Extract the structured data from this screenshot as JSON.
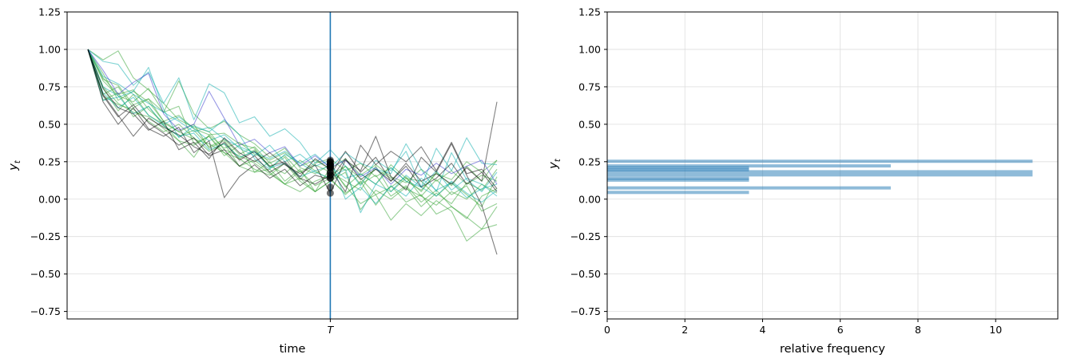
{
  "chart_data": [
    {
      "type": "line",
      "xlabel": "time",
      "ylabel": "y",
      "ylabel_sub": "t",
      "xtick_label": "T",
      "ylim": [
        -0.8,
        1.25
      ],
      "yticks": [
        1.25,
        1.0,
        0.75,
        0.5,
        0.25,
        0.0,
        -0.25,
        -0.5,
        -0.75
      ],
      "ytick_labels": [
        "1.25",
        "1.00",
        "0.75",
        "0.50",
        "0.25",
        "0.00",
        "−0.25",
        "−0.50",
        "−0.75"
      ],
      "n_steps": 28,
      "T_index": 16,
      "vline_color": "#1f77b4",
      "grid": "horizontal",
      "series": [
        {
          "color": "#2ca02c",
          "values": [
            1.0,
            0.74,
            0.59,
            0.7,
            0.56,
            0.5,
            0.39,
            0.28,
            0.43,
            0.44,
            0.37,
            0.34,
            0.21,
            0.28,
            0.13,
            0.23,
            0.18,
            0.12,
            0.06,
            0.22,
            0.05,
            0.14,
            0.12,
            0.02,
            0.11,
            0.03,
            -0.05,
            0.15
          ]
        },
        {
          "color": "#2ca02c",
          "values": [
            1.0,
            0.69,
            0.63,
            0.6,
            0.52,
            0.45,
            0.5,
            0.41,
            0.32,
            0.37,
            0.22,
            0.18,
            0.2,
            0.1,
            0.19,
            0.09,
            0.14,
            0.03,
            0.12,
            -0.04,
            0.09,
            -0.02,
            0.03,
            -0.1,
            -0.05,
            -0.12,
            -0.2,
            -0.17
          ]
        },
        {
          "color": "#2ca02c",
          "values": [
            1.0,
            0.8,
            0.76,
            0.63,
            0.67,
            0.52,
            0.56,
            0.47,
            0.43,
            0.34,
            0.38,
            0.3,
            0.26,
            0.31,
            0.22,
            0.26,
            0.2,
            0.27,
            0.16,
            0.23,
            0.15,
            0.11,
            0.2,
            0.12,
            0.19,
            0.1,
            0.16,
            0.12
          ]
        },
        {
          "color": "#2ca02c",
          "values": [
            1.0,
            0.66,
            0.71,
            0.55,
            0.62,
            0.49,
            0.42,
            0.46,
            0.35,
            0.4,
            0.3,
            0.35,
            0.24,
            0.29,
            0.18,
            0.24,
            0.27,
            0.19,
            0.24,
            0.15,
            0.21,
            0.12,
            0.06,
            0.17,
            0.13,
            0.25,
            0.18,
            0.26
          ]
        },
        {
          "color": "#2ca02c",
          "values": [
            1.0,
            0.93,
            0.99,
            0.81,
            0.73,
            0.64,
            0.53,
            0.48,
            0.45,
            0.33,
            0.29,
            0.24,
            0.17,
            0.1,
            0.14,
            0.05,
            0.21,
            0.09,
            -0.03,
            0.03,
            -0.14,
            -0.03,
            -0.11,
            -0.01,
            -0.08,
            -0.28,
            -0.2,
            -0.05
          ]
        },
        {
          "color": "#2ca02c",
          "values": [
            1.0,
            0.79,
            0.69,
            0.65,
            0.74,
            0.58,
            0.62,
            0.37,
            0.42,
            0.29,
            0.36,
            0.18,
            0.25,
            0.12,
            0.2,
            0.05,
            0.12,
            0.18,
            -0.07,
            0.06,
            0.0,
            0.08,
            -0.05,
            0.04,
            -0.03,
            0.11,
            0.06,
            0.2
          ]
        },
        {
          "color": "#2ca02c",
          "values": [
            1.0,
            0.7,
            0.75,
            0.61,
            0.67,
            0.58,
            0.79,
            0.57,
            0.47,
            0.52,
            0.43,
            0.37,
            0.28,
            0.34,
            0.21,
            0.17,
            0.23,
            0.08,
            0.17,
            0.1,
            0.23,
            0.14,
            0.05,
            0.18,
            0.09,
            0.22,
            0.12,
            0.26
          ]
        },
        {
          "color": "#2ca02c",
          "values": [
            1.0,
            0.84,
            0.66,
            0.72,
            0.65,
            0.52,
            0.45,
            0.5,
            0.34,
            0.39,
            0.27,
            0.2,
            0.16,
            0.24,
            0.12,
            0.05,
            0.12,
            0.22,
            0.1,
            0.16,
            0.02,
            0.09,
            -0.02,
            0.06,
            -0.05,
            -0.13,
            0.02,
            0.07
          ]
        },
        {
          "color": "#2ca02c",
          "values": [
            1.0,
            0.75,
            0.64,
            0.58,
            0.55,
            0.47,
            0.39,
            0.36,
            0.42,
            0.31,
            0.27,
            0.33,
            0.22,
            0.17,
            0.26,
            0.19,
            0.13,
            0.04,
            0.11,
            0.2,
            0.14,
            0.07,
            0.02,
            0.13,
            0.03,
            0.09,
            -0.08,
            -0.03
          ]
        },
        {
          "color": "#2ca02c",
          "values": [
            1.0,
            0.81,
            0.7,
            0.73,
            0.6,
            0.51,
            0.45,
            0.4,
            0.37,
            0.31,
            0.22,
            0.26,
            0.18,
            0.1,
            0.05,
            0.12,
            0.16,
            0.22,
            0.14,
            0.03,
            0.08,
            0.15,
            0.02,
            -0.04,
            0.05,
            0.0,
            0.1,
            0.04
          ]
        },
        {
          "color": "#00aaaa",
          "values": [
            1.0,
            0.92,
            0.9,
            0.76,
            0.85,
            0.64,
            0.81,
            0.53,
            0.77,
            0.71,
            0.51,
            0.55,
            0.42,
            0.47,
            0.38,
            0.24,
            0.33,
            0.22,
            0.09,
            0.26,
            0.19,
            0.32,
            0.08,
            0.34,
            0.19,
            0.41,
            0.24,
            0.23
          ]
        },
        {
          "color": "#00aaaa",
          "values": [
            1.0,
            0.66,
            0.68,
            0.72,
            0.88,
            0.6,
            0.41,
            0.49,
            0.45,
            0.53,
            0.43,
            0.27,
            0.2,
            0.3,
            0.24,
            0.3,
            0.21,
            0.31,
            0.24,
            0.2,
            0.17,
            0.37,
            0.2,
            0.05,
            0.31,
            0.13,
            0.05,
            0.18
          ]
        },
        {
          "color": "#00aaaa",
          "values": [
            1.0,
            0.71,
            0.61,
            0.68,
            0.56,
            0.49,
            0.42,
            0.44,
            0.33,
            0.37,
            0.28,
            0.32,
            0.21,
            0.24,
            0.15,
            0.19,
            0.22,
            0.14,
            0.17,
            0.1,
            0.21,
            0.12,
            0.08,
            0.19,
            0.06,
            0.14,
            0.1,
            0.02
          ]
        },
        {
          "color": "#00aaaa",
          "values": [
            1.0,
            0.75,
            0.69,
            0.57,
            0.62,
            0.5,
            0.55,
            0.47,
            0.39,
            0.43,
            0.34,
            0.29,
            0.36,
            0.25,
            0.3,
            0.22,
            0.26,
            0.0,
            0.08,
            -0.03,
            0.09,
            0.02,
            0.14,
            0.06,
            0.11,
            0.01,
            0.07,
            0.1
          ]
        },
        {
          "color": "#00aaaa",
          "values": [
            1.0,
            0.82,
            0.77,
            0.7,
            0.64,
            0.58,
            0.52,
            0.45,
            0.48,
            0.4,
            0.35,
            0.31,
            0.27,
            0.32,
            0.24,
            0.18,
            0.14,
            0.2,
            -0.09,
            0.1,
            0.05,
            0.16,
            0.08,
            0.02,
            0.12,
            0.04,
            -0.02,
            0.06
          ]
        },
        {
          "color": "#3333cc",
          "values": [
            1.0,
            0.86,
            0.7,
            0.78,
            0.84,
            0.57,
            0.46,
            0.5,
            0.72,
            0.54,
            0.36,
            0.4,
            0.31,
            0.35,
            0.22,
            0.29,
            0.21,
            0.26,
            0.15,
            0.21,
            0.1,
            0.2,
            0.16,
            0.24,
            0.17,
            0.22,
            0.26,
            0.1
          ]
        },
        {
          "color": "#000000",
          "values": [
            1.0,
            0.65,
            0.5,
            0.61,
            0.47,
            0.42,
            0.48,
            0.31,
            0.39,
            0.01,
            0.15,
            0.23,
            0.14,
            0.2,
            0.09,
            0.16,
            0.13,
            0.27,
            0.13,
            0.2,
            0.12,
            0.24,
            0.12,
            0.17,
            0.1,
            0.21,
            0.12,
            0.65
          ]
        },
        {
          "color": "#000000",
          "values": [
            1.0,
            0.7,
            0.56,
            0.42,
            0.54,
            0.48,
            0.43,
            0.35,
            0.3,
            0.38,
            0.26,
            0.32,
            0.22,
            0.25,
            0.15,
            0.27,
            0.2,
            0.05,
            0.36,
            0.23,
            0.32,
            0.25,
            0.35,
            0.19,
            0.38,
            0.17,
            0.2,
            0.07
          ]
        },
        {
          "color": "#000000",
          "values": [
            1.0,
            0.74,
            0.61,
            0.57,
            0.46,
            0.52,
            0.33,
            0.38,
            0.27,
            0.41,
            0.31,
            0.25,
            0.31,
            0.23,
            0.17,
            0.23,
            0.04,
            0.26,
            0.19,
            0.42,
            0.15,
            0.06,
            0.28,
            0.18,
            0.37,
            0.16,
            -0.04,
            -0.37
          ]
        },
        {
          "color": "#000000",
          "values": [
            1.0,
            0.69,
            0.55,
            0.63,
            0.51,
            0.44,
            0.36,
            0.41,
            0.29,
            0.33,
            0.22,
            0.29,
            0.18,
            0.24,
            0.14,
            0.1,
            0.16,
            0.32,
            0.18,
            0.28,
            0.12,
            0.22,
            0.08,
            0.14,
            0.24,
            0.1,
            0.18,
            0.05
          ]
        }
      ],
      "marker_values": [
        0.04,
        0.08,
        0.14,
        0.14,
        0.16,
        0.16,
        0.18,
        0.18,
        0.21,
        0.21,
        0.21,
        0.22,
        0.22,
        0.23,
        0.23,
        0.23,
        0.24,
        0.25,
        0.25,
        0.26
      ]
    },
    {
      "type": "bar",
      "orientation": "horizontal",
      "xlabel": "relative frequency",
      "ylabel": "y",
      "ylabel_sub": "t",
      "ylim": [
        -0.8,
        1.25
      ],
      "xlim": [
        0,
        11.6
      ],
      "xticks": [
        0,
        2,
        4,
        6,
        8,
        10
      ],
      "yticks": [
        1.25,
        1.0,
        0.75,
        0.5,
        0.25,
        0.0,
        -0.25,
        -0.5,
        -0.75
      ],
      "ytick_labels": [
        "1.25",
        "1.00",
        "0.75",
        "0.50",
        "0.25",
        "0.00",
        "−0.25",
        "−0.50",
        "−0.75"
      ],
      "bar_color": "#1f77b4",
      "grid": "both",
      "bars": [
        {
          "y": 0.253,
          "value": 10.95
        },
        {
          "y": 0.222,
          "value": 7.3
        },
        {
          "y": 0.209,
          "value": 3.65
        },
        {
          "y": 0.196,
          "value": 3.65
        },
        {
          "y": 0.183,
          "value": 10.95
        },
        {
          "y": 0.162,
          "value": 10.95
        },
        {
          "y": 0.14,
          "value": 3.65
        },
        {
          "y": 0.127,
          "value": 3.65
        },
        {
          "y": 0.075,
          "value": 7.3
        },
        {
          "y": 0.045,
          "value": 3.65
        }
      ]
    }
  ]
}
